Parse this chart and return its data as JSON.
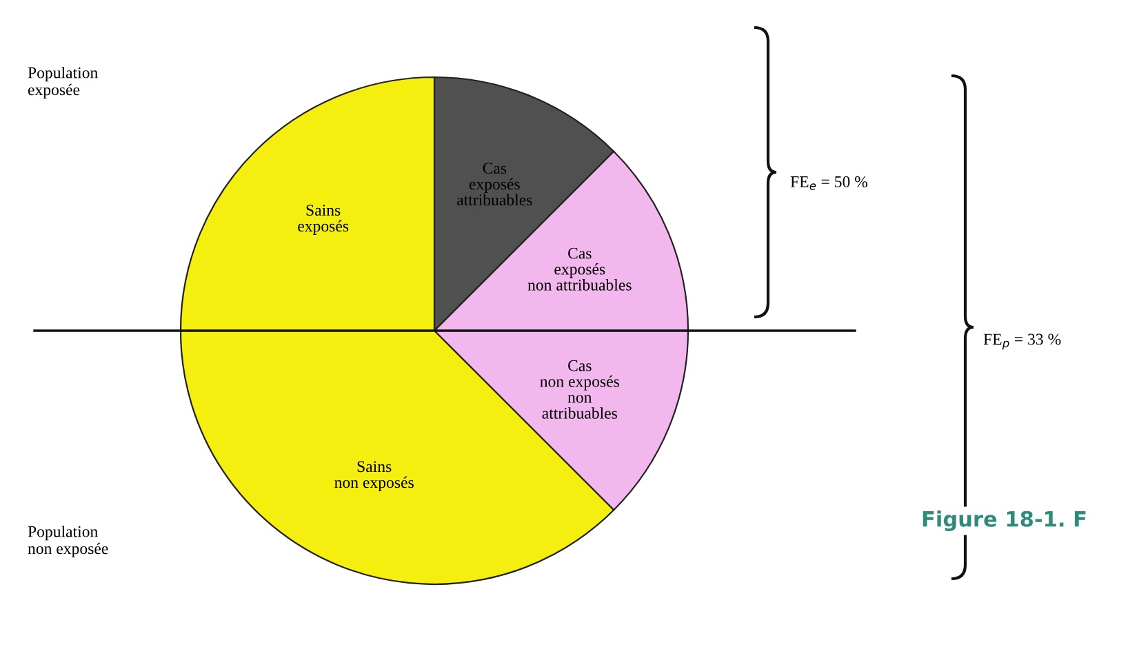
{
  "chart_data": {
    "type": "pie",
    "categories": [
      "Cas\nexposés\nattribuables",
      "Cas\nexposés\nnon attribuables",
      "Cas\nnon exposés\nnon\nattribuables",
      "Sains\nnon exposés",
      "Sains\nexposés"
    ],
    "values": [
      12.5,
      12.5,
      12.5,
      37.5,
      25
    ],
    "colors": [
      "#505050",
      "#f2b8ee",
      "#f2b8ee",
      "#f5ef10",
      "#f5ef10"
    ],
    "annotations": [
      "Population\nexposée",
      "Population\nnon exposée",
      "FE$_{e}$ = 50 %",
      "FE$_{p}$ = 33 %",
      "Figure 18-1. F"
    ]
  }
}
